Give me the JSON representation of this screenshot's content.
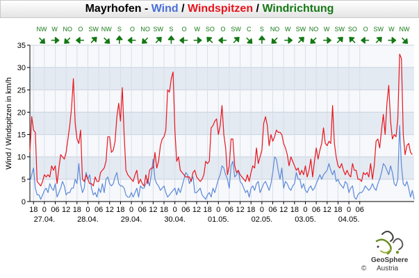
{
  "title": {
    "station": "Mayrhofen",
    "sep1": " - ",
    "wind": "Wind",
    "sep2": " / ",
    "gusts": "Windspitzen",
    "sep3": " / ",
    "direction": "Windrichtung"
  },
  "colors": {
    "wind": "#5b88d8",
    "gusts": "#e8141c",
    "direction": "#147814",
    "band": "#e4eaf2",
    "plot_bg": "#f6f8fb"
  },
  "logo": {
    "name": "GeoSphere",
    "country": "Austria",
    "copyright": "©"
  },
  "chart_data": {
    "type": "line",
    "ylabel": "Wind / Windspitzen in km/h",
    "ylim": [
      0,
      35
    ],
    "yticks": [
      0,
      5,
      10,
      15,
      20,
      25,
      30,
      35
    ],
    "x_start": "27.04. 16:00",
    "x_step_hours": 1,
    "x_tick_labels": [
      "18",
      "0",
      "06",
      "12",
      "18",
      "0",
      "06",
      "12",
      "18",
      "0",
      "06",
      "12",
      "18",
      "0",
      "06",
      "12",
      "18",
      "0",
      "06",
      "12",
      "18",
      "0",
      "06",
      "12",
      "18",
      "0",
      "06",
      "12",
      "18",
      "0",
      "06"
    ],
    "x_date_labels": [
      "27.04.",
      "28.04.",
      "29.04.",
      "30.04.",
      "01.05.",
      "02.05.",
      "03.05.",
      "04.05."
    ],
    "grid": true,
    "directions": [
      "NW",
      "W",
      "NO",
      "O",
      "SW",
      "NW",
      "S",
      "O",
      "NO",
      "SW",
      "S",
      "O",
      "W",
      "SO",
      "O",
      "SW",
      "C",
      "S",
      "NO",
      "W",
      "SW",
      "NO",
      "W",
      "SW",
      "SO",
      "O",
      "SW",
      "W",
      "NW"
    ],
    "direction_arrows_deg": [
      315,
      270,
      45,
      90,
      225,
      315,
      180,
      90,
      45,
      225,
      180,
      90,
      270,
      135,
      90,
      225,
      315,
      180,
      45,
      270,
      225,
      45,
      270,
      225,
      135,
      90,
      225,
      270,
      315
    ],
    "series": [
      {
        "name": "Wind",
        "values": [
          4.5,
          6,
          7.5,
          3,
          1.5,
          1.5,
          0.5,
          1.5,
          2.5,
          3,
          2,
          4,
          3,
          2.5,
          4,
          1,
          2,
          3,
          4.5,
          3.5,
          1.5,
          2,
          2,
          3,
          3,
          5,
          4,
          8.5,
          4,
          2,
          3,
          6.5,
          5,
          6,
          3,
          1.5,
          2,
          1,
          3,
          2,
          4,
          2,
          5,
          5.5,
          4,
          3.5,
          4,
          5.5,
          6.5,
          4,
          3.5,
          3.5,
          3,
          1.5,
          1,
          1,
          2,
          1,
          2,
          3,
          1,
          3.5,
          3,
          3,
          4,
          5,
          3.5,
          6,
          9.5,
          5,
          4,
          3.5,
          2.5,
          3,
          3.5,
          2,
          1,
          1.5,
          2,
          2.5,
          3,
          1.5,
          3,
          2,
          3.5,
          5,
          6.5,
          6,
          4,
          5,
          5.5,
          2,
          2,
          2.5,
          3,
          1.5,
          1,
          0.5,
          1.5,
          2,
          1,
          3,
          2,
          3.5,
          5,
          6,
          8,
          7.5,
          6,
          5,
          3,
          8,
          9,
          5.5,
          6,
          7,
          4.5,
          4,
          3,
          2,
          2.5,
          1,
          3,
          3.5,
          2.5,
          4,
          4.5,
          2,
          3,
          4,
          4.5,
          3.5,
          2.5,
          4,
          6.5,
          10,
          9.5,
          7,
          5,
          7.5,
          3,
          4.5,
          4,
          3,
          2.5,
          3.5,
          4,
          6.5,
          5,
          5,
          3,
          4,
          2.5,
          2,
          3,
          3.5,
          2.5,
          3,
          4,
          5,
          6,
          5,
          6,
          6.5,
          7,
          8.5,
          7,
          6,
          7,
          4.5,
          5,
          4,
          3.5,
          3,
          4.5,
          4,
          2,
          3,
          3.5,
          1,
          0.5,
          1.5,
          2,
          2,
          2.5,
          3.5,
          3,
          2.5,
          3,
          4,
          3,
          2.5,
          4,
          5,
          6.5,
          8.5,
          8,
          7,
          6,
          8,
          6.5,
          4,
          3.5,
          5,
          17,
          8,
          4,
          3.5,
          4.5,
          3,
          1,
          2.5,
          0.5
        ]
      },
      {
        "name": "Windspitzen",
        "values": [
          11,
          19,
          16,
          15.5,
          4.5,
          4,
          3.5,
          4.5,
          6,
          5.5,
          6,
          5.5,
          8,
          7,
          8,
          4,
          7.5,
          10.5,
          10,
          9.5,
          11,
          14,
          17,
          21,
          27.5,
          17.5,
          14,
          13,
          16,
          5,
          4.5,
          6,
          5,
          4,
          4,
          3.5,
          5.5,
          4.5,
          4.5,
          6.5,
          7,
          7.5,
          9,
          14.5,
          14.5,
          11,
          11.5,
          13.5,
          19,
          22,
          18,
          25.5,
          15,
          7,
          6,
          5.5,
          5,
          4.5,
          6,
          7,
          4,
          5,
          4,
          3.5,
          6,
          4,
          7,
          7.5,
          7.5,
          11,
          7.5,
          9,
          12.5,
          14,
          14.5,
          16,
          25,
          24.5,
          27.5,
          29,
          16,
          9,
          10,
          7,
          6.5,
          6,
          5.5,
          5.5,
          5.5,
          4.5,
          6.5,
          7,
          5.5,
          5,
          4.5,
          5,
          6,
          9,
          8.5,
          9,
          16.5,
          17,
          18,
          18.5,
          15,
          17,
          21.5,
          15,
          12,
          6,
          8,
          14,
          14,
          8,
          6.5,
          7,
          6,
          5.5,
          5,
          4.5,
          6,
          4.5,
          6.5,
          8,
          7.5,
          12,
          8.5,
          10,
          11.5,
          17.5,
          19,
          17,
          12.5,
          15,
          13.5,
          14.5,
          16,
          15.5,
          15.5,
          15,
          13,
          12,
          10.5,
          8,
          10,
          9,
          8,
          7,
          7.5,
          6,
          7,
          6,
          8,
          5.5,
          7,
          9.5,
          5.5,
          9,
          12,
          9.5,
          11.5,
          13,
          16.5,
          13,
          12.5,
          13.5,
          13,
          21.5,
          13,
          10,
          8,
          7.5,
          8.5,
          7,
          6,
          7,
          6,
          5.5,
          8.5,
          7,
          7,
          5,
          5,
          4.5,
          6.5,
          6,
          6.5,
          5.5,
          8.5,
          5,
          8,
          13.5,
          14,
          12,
          16,
          19.5,
          15,
          22,
          26,
          18,
          14,
          15,
          14.5,
          18.5,
          33,
          32,
          15,
          10.5,
          12.5,
          13,
          11,
          10.5
        ]
      }
    ]
  }
}
